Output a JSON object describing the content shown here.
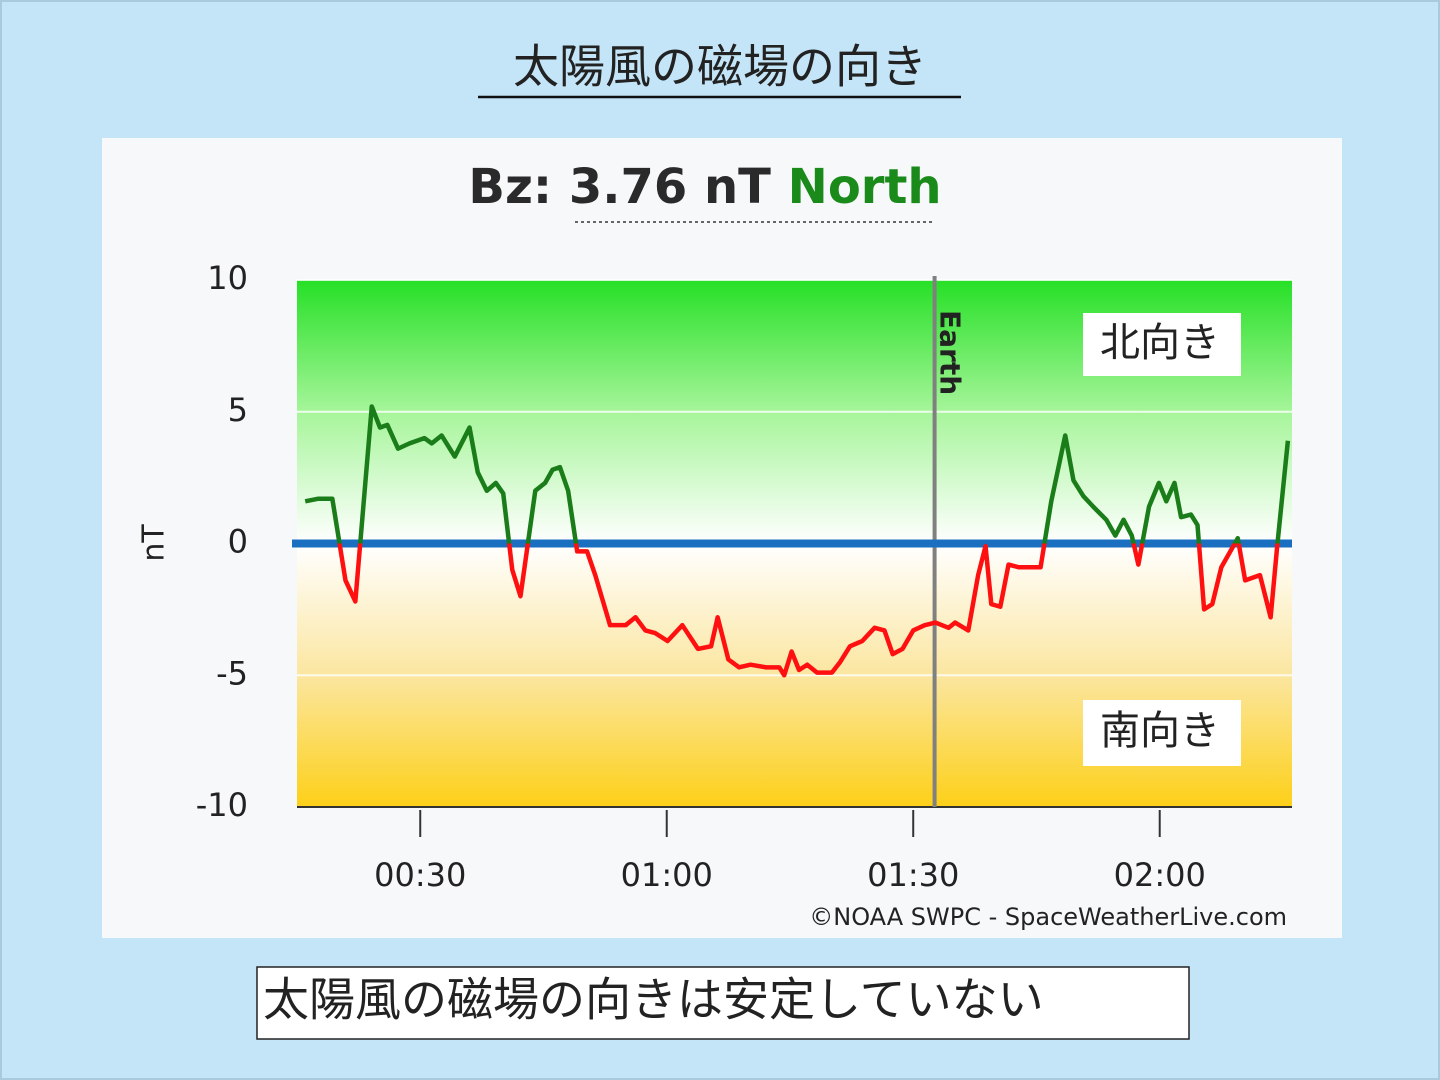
{
  "slide_title": "太陽風の磁場の向き",
  "caption": "太陽風の磁場の向きは安定していない",
  "chart_data": {
    "type": "line",
    "bz_label": "Bz:",
    "bz_value": 3.76,
    "bz_unit": "nT",
    "direction": "North",
    "direction_color": "#1a8a1a",
    "y_label": "nT",
    "credit": "©NOAA SWPC - SpaceWeatherLive.com",
    "north_label": "北向き",
    "south_label": "南向き",
    "marker": {
      "x": 92.6,
      "label": "Earth",
      "color": "#808080"
    },
    "positive_color": "#1a7d1a",
    "negative_color": "#ff1010",
    "zero_color": "#1a6fc0",
    "grid": true,
    "xlim": [
      15,
      136.1
    ],
    "xticks": [
      {
        "value": 30,
        "label": "00:30"
      },
      {
        "value": 60,
        "label": "01:00"
      },
      {
        "value": 90,
        "label": "01:30"
      },
      {
        "value": 120,
        "label": "02:00"
      }
    ],
    "ylim": [
      -10,
      10
    ],
    "yticks": [
      10,
      5,
      0,
      -5,
      -10
    ],
    "x": [
      16,
      17.6,
      19.3,
      20.9,
      22.1,
      24.1,
      25.1,
      26,
      27.3,
      28.7,
      30.5,
      31.4,
      32.6,
      34.2,
      36,
      37,
      38.1,
      39.2,
      40.1,
      41.2,
      42.2,
      44,
      45.2,
      46.1,
      47,
      48,
      49.1,
      50.3,
      51.3,
      53.1,
      55,
      56.2,
      57.4,
      58.6,
      60.1,
      61.9,
      63.8,
      65.4,
      66.2,
      67.5,
      68.8,
      70.2,
      72.1,
      73.7,
      74.3,
      75.2,
      76.1,
      77.1,
      78.3,
      80.1,
      81.1,
      82.3,
      83.8,
      85.3,
      86.5,
      87.5,
      88.7,
      90,
      91.4,
      92.7,
      94.3,
      95.1,
      96.7,
      97.9,
      98.8,
      99.5,
      100.6,
      101.6,
      102.8,
      104,
      105.5,
      106.8,
      108.5,
      109.5,
      110.7,
      111.9,
      113.5,
      114.6,
      115.6,
      116.6,
      117.4,
      118.7,
      119.9,
      120.8,
      121.8,
      122.6,
      123.8,
      124.6,
      125.4,
      126.4,
      127.5,
      129.5,
      130.4,
      132.2,
      133.5,
      134.3,
      135.6
    ],
    "values": [
      1.6,
      1.7,
      1.7,
      -1.4,
      -2.2,
      5.2,
      4.4,
      4.5,
      3.6,
      3.8,
      4.0,
      3.8,
      4.1,
      3.3,
      4.4,
      2.7,
      2.0,
      2.3,
      1.9,
      -1.0,
      -2.0,
      2.0,
      2.3,
      2.8,
      2.9,
      2.0,
      -0.3,
      -0.3,
      -1.2,
      -3.1,
      -3.1,
      -2.8,
      -3.3,
      -3.4,
      -3.7,
      -3.1,
      -4.0,
      -3.9,
      -2.8,
      -4.4,
      -4.7,
      -4.6,
      -4.7,
      -4.7,
      -5.0,
      -4.1,
      -4.8,
      -4.6,
      -4.9,
      -4.9,
      -4.5,
      -3.9,
      -3.7,
      -3.2,
      -3.3,
      -4.2,
      -4.0,
      -3.3,
      -3.1,
      -3.0,
      -3.2,
      -3.0,
      -3.3,
      -1.2,
      -0.1,
      -2.3,
      -2.4,
      -0.8,
      -0.9,
      -0.9,
      -0.9,
      1.6,
      4.1,
      2.4,
      1.8,
      1.4,
      0.9,
      0.3,
      0.9,
      0.3,
      -0.8,
      1.4,
      2.3,
      1.6,
      2.3,
      1.0,
      1.1,
      0.7,
      -2.5,
      -2.3,
      -0.9,
      0.2,
      -1.4,
      -1.2,
      -2.8,
      -0.1,
      3.9
    ]
  }
}
